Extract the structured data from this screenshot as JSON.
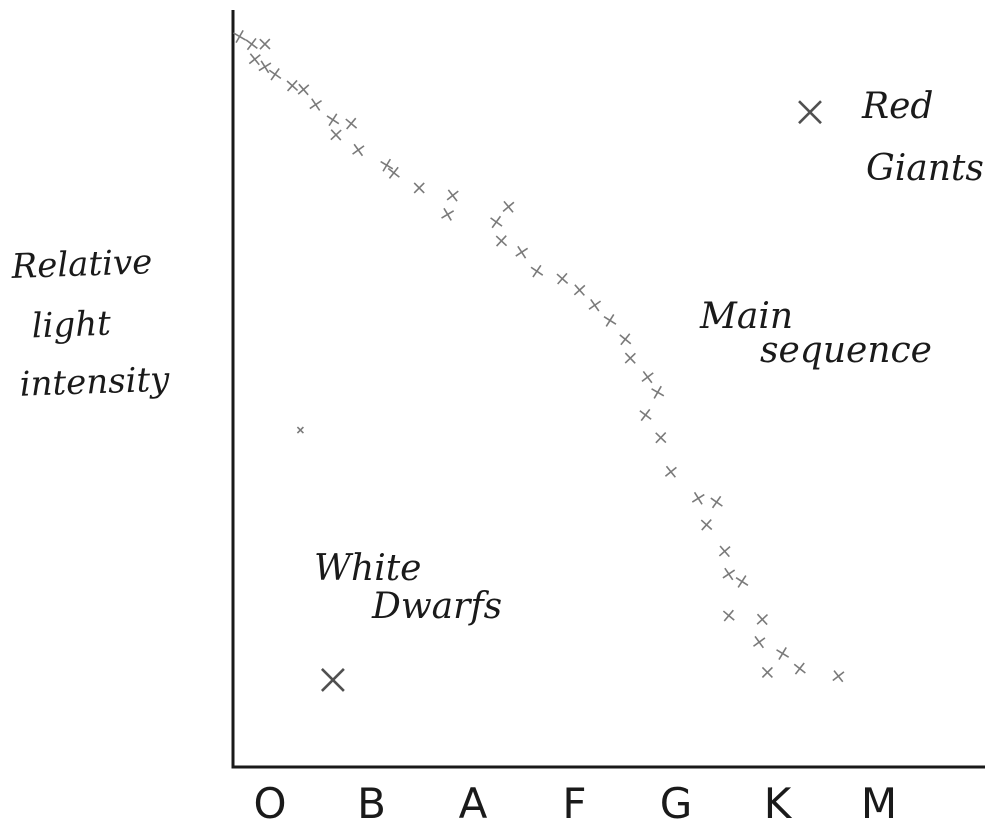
{
  "chart_data": {
    "type": "scatter",
    "ylabel": [
      "Relative",
      "light",
      "intensity"
    ],
    "categories": [
      "O",
      "B",
      "A",
      "F",
      "G",
      "K",
      "M"
    ],
    "ylim": [
      0,
      100
    ],
    "series": [
      {
        "name": "Main sequence",
        "label_lines": [
          "Main",
          "sequence"
        ],
        "points": [
          [
            -0.3,
            96.5
          ],
          [
            -0.18,
            95.5
          ],
          [
            -0.05,
            95.5
          ],
          [
            -0.15,
            93.5
          ],
          [
            -0.05,
            92.5
          ],
          [
            0.05,
            91.5
          ],
          [
            0.22,
            90.0
          ],
          [
            0.33,
            89.5
          ],
          [
            0.45,
            87.5
          ],
          [
            0.62,
            85.5
          ],
          [
            0.8,
            85.0
          ],
          [
            0.65,
            83.5
          ],
          [
            0.87,
            81.5
          ],
          [
            1.15,
            79.5
          ],
          [
            1.22,
            78.5
          ],
          [
            1.47,
            76.5
          ],
          [
            1.8,
            75.5
          ],
          [
            1.75,
            73.0
          ],
          [
            2.23,
            72.0
          ],
          [
            2.28,
            69.5
          ],
          [
            2.35,
            74.0
          ],
          [
            2.48,
            68.0
          ],
          [
            2.63,
            65.5
          ],
          [
            2.88,
            64.5
          ],
          [
            3.05,
            63.0
          ],
          [
            3.2,
            61.0
          ],
          [
            3.35,
            59.0
          ],
          [
            3.5,
            56.5
          ],
          [
            3.55,
            54.0
          ],
          [
            3.72,
            51.5
          ],
          [
            3.82,
            49.5
          ],
          [
            3.7,
            46.5
          ],
          [
            3.85,
            43.5
          ],
          [
            3.95,
            39.0
          ],
          [
            4.22,
            35.5
          ],
          [
            4.4,
            35.0
          ],
          [
            4.3,
            32.0
          ],
          [
            4.48,
            28.5
          ],
          [
            4.52,
            25.5
          ],
          [
            4.65,
            24.5
          ],
          [
            4.52,
            20.0
          ],
          [
            4.85,
            19.5
          ],
          [
            4.82,
            16.5
          ],
          [
            5.05,
            15.0
          ],
          [
            5.22,
            13.0
          ],
          [
            4.9,
            12.5
          ],
          [
            5.6,
            12.0
          ]
        ]
      },
      {
        "name": "Red Giants",
        "label_lines": [
          "Red",
          "Giants"
        ],
        "points": [
          [
            5.32,
            86.5
          ]
        ]
      },
      {
        "name": "White Dwarfs",
        "label_lines": [
          "White",
          "Dwarfs"
        ],
        "points": [
          [
            0.62,
            11.5
          ],
          [
            0.3,
            44.5
          ]
        ]
      }
    ]
  },
  "colors": {
    "ink": "#1a1a1a",
    "marks": "#7a7a7a",
    "big_marks": "#505050",
    "background": "#ffffff"
  }
}
